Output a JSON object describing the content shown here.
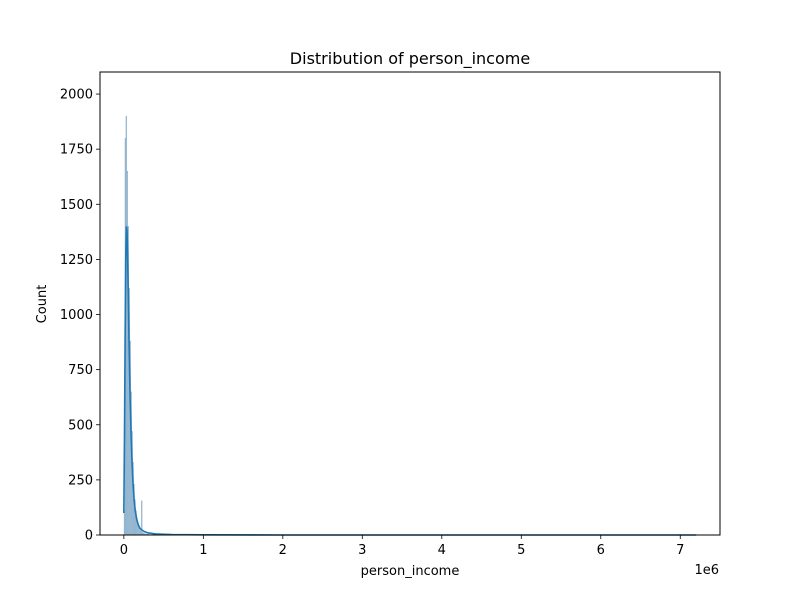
{
  "chart_data": {
    "type": "bar",
    "title": "Distribution of person_income",
    "xlabel": "person_income",
    "ylabel": "Count",
    "x_offset_label": "1e6",
    "xlim": [
      -300000,
      7500000
    ],
    "ylim": [
      0,
      2100
    ],
    "xticks": [
      0,
      1000000,
      2000000,
      3000000,
      4000000,
      5000000,
      6000000,
      7000000
    ],
    "xtick_labels": [
      "0",
      "1",
      "2",
      "3",
      "4",
      "5",
      "6",
      "7"
    ],
    "yticks": [
      0,
      250,
      500,
      750,
      1000,
      1250,
      1500,
      1750,
      2000
    ],
    "ytick_labels": [
      "0",
      "250",
      "500",
      "750",
      "1000",
      "1250",
      "1500",
      "1750",
      "2000"
    ],
    "grid": false,
    "colors": {
      "bar": "#a3c1d8",
      "bar_edge": "#7fa6c4",
      "kde": "#1f77b4"
    },
    "histogram": {
      "bin_width": 12000,
      "bins": [
        {
          "x": 8000,
          "count": 110
        },
        {
          "x": 20000,
          "count": 1800
        },
        {
          "x": 32000,
          "count": 1900
        },
        {
          "x": 44000,
          "count": 1650
        },
        {
          "x": 56000,
          "count": 1400
        },
        {
          "x": 68000,
          "count": 1120
        },
        {
          "x": 80000,
          "count": 880
        },
        {
          "x": 92000,
          "count": 650
        },
        {
          "x": 104000,
          "count": 470
        },
        {
          "x": 116000,
          "count": 330
        },
        {
          "x": 128000,
          "count": 230
        },
        {
          "x": 140000,
          "count": 160
        },
        {
          "x": 152000,
          "count": 110
        },
        {
          "x": 164000,
          "count": 80
        },
        {
          "x": 176000,
          "count": 55
        },
        {
          "x": 188000,
          "count": 40
        },
        {
          "x": 200000,
          "count": 30
        },
        {
          "x": 212000,
          "count": 20
        },
        {
          "x": 224000,
          "count": 155
        },
        {
          "x": 236000,
          "count": 12
        },
        {
          "x": 248000,
          "count": 8
        },
        {
          "x": 260000,
          "count": 6
        },
        {
          "x": 272000,
          "count": 5
        },
        {
          "x": 284000,
          "count": 4
        },
        {
          "x": 296000,
          "count": 3
        },
        {
          "x": 308000,
          "count": 3
        },
        {
          "x": 320000,
          "count": 2
        },
        {
          "x": 332000,
          "count": 2
        }
      ]
    },
    "kde": {
      "x": [
        0,
        8000,
        16000,
        24000,
        32000,
        40000,
        48000,
        56000,
        64000,
        72000,
        80000,
        92000,
        104000,
        116000,
        128000,
        140000,
        160000,
        180000,
        200000,
        230000,
        260000,
        300000,
        400000,
        600000,
        1000000,
        2000000,
        4000000,
        6000000,
        7200000
      ],
      "y": [
        100,
        450,
        900,
        1250,
        1400,
        1380,
        1250,
        1080,
        900,
        740,
        600,
        440,
        320,
        230,
        165,
        120,
        75,
        48,
        32,
        22,
        15,
        10,
        5,
        2,
        1,
        0,
        0,
        0,
        0
      ]
    }
  }
}
